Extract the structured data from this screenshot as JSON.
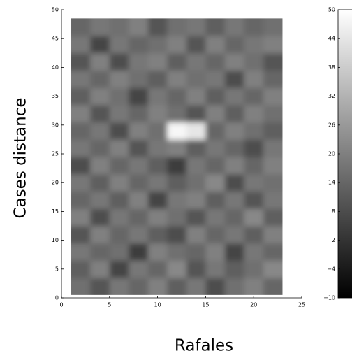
{
  "chart_data": {
    "type": "heatmap",
    "xlabel": "Rafales",
    "ylabel": "Cases distance",
    "xlim": [
      0,
      25
    ],
    "ylim": [
      0,
      50
    ],
    "xticks": [
      0,
      5,
      10,
      15,
      20,
      25
    ],
    "yticks": [
      0,
      5,
      10,
      15,
      20,
      25,
      30,
      35,
      40,
      45,
      50
    ],
    "colormap": "gray",
    "x": [
      2,
      4,
      6,
      8,
      10,
      12,
      14,
      16,
      18,
      20,
      22
    ],
    "y": [
      2,
      5,
      8,
      11,
      14,
      17,
      20,
      23,
      26,
      29,
      32,
      35,
      38,
      41,
      44,
      47
    ],
    "z": [
      [
        16,
        10,
        18,
        14,
        20,
        12,
        18,
        8,
        16,
        20,
        14
      ],
      [
        12,
        20,
        6,
        18,
        14,
        22,
        10,
        18,
        12,
        16,
        22
      ],
      [
        18,
        14,
        16,
        4,
        20,
        16,
        14,
        20,
        6,
        18,
        14
      ],
      [
        10,
        20,
        14,
        18,
        12,
        8,
        20,
        14,
        18,
        12,
        20
      ],
      [
        20,
        8,
        18,
        14,
        20,
        16,
        10,
        18,
        14,
        22,
        12
      ],
      [
        14,
        18,
        12,
        20,
        6,
        18,
        20,
        12,
        18,
        10,
        18
      ],
      [
        18,
        12,
        20,
        14,
        18,
        12,
        16,
        22,
        8,
        18,
        16
      ],
      [
        8,
        20,
        14,
        18,
        12,
        4,
        18,
        14,
        20,
        14,
        20
      ],
      [
        18,
        14,
        20,
        10,
        18,
        20,
        12,
        18,
        14,
        8,
        18
      ],
      [
        14,
        18,
        8,
        20,
        16,
        48,
        44,
        14,
        20,
        16,
        12
      ],
      [
        20,
        10,
        18,
        14,
        20,
        16,
        10,
        20,
        12,
        20,
        16
      ],
      [
        12,
        20,
        16,
        6,
        18,
        14,
        20,
        12,
        18,
        14,
        20
      ],
      [
        18,
        14,
        20,
        16,
        12,
        20,
        16,
        18,
        8,
        20,
        14
      ],
      [
        10,
        20,
        8,
        18,
        20,
        12,
        18,
        14,
        20,
        16,
        10
      ],
      [
        18,
        6,
        18,
        14,
        16,
        20,
        10,
        20,
        14,
        18,
        20
      ],
      [
        14,
        18,
        16,
        20,
        10,
        16,
        18,
        12,
        18,
        14,
        16
      ]
    ],
    "colorbar": {
      "lim": [
        -10,
        50
      ],
      "ticks": [
        {
          "value": -10,
          "label": "−10"
        },
        {
          "value": -4,
          "label": "−4"
        },
        2,
        8,
        14,
        20,
        26,
        32,
        38,
        44,
        50
      ]
    }
  }
}
